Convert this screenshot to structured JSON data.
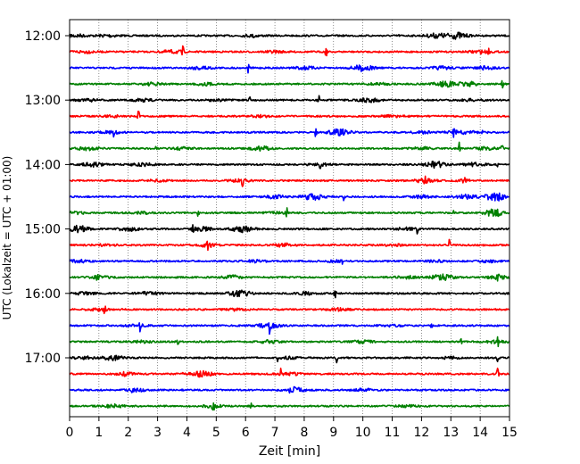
{
  "chart_data": {
    "type": "line",
    "subtype": "helicorder",
    "xlabel": "Zeit  [min]",
    "ylabel": "UTC (Lokalzeit = UTC + 01:00)",
    "xlim": [
      0,
      15
    ],
    "x_ticks": [
      "0",
      "1",
      "2",
      "3",
      "4",
      "5",
      "6",
      "7",
      "8",
      "9",
      "10",
      "11",
      "12",
      "13",
      "14",
      "15"
    ],
    "y_ticks": [
      "12:00",
      "13:00",
      "14:00",
      "15:00",
      "16:00",
      "17:00"
    ],
    "grid": "vertical-dotted",
    "trace_minutes": 15,
    "trace_color_cycle": [
      "#000000",
      "#ff0000",
      "#0000ff",
      "#008000"
    ],
    "traces": [
      {
        "start": "12:00",
        "color": "#000000",
        "bursts": [
          [
            0.2,
            0.5
          ],
          [
            1.3,
            0.4
          ],
          [
            6.2,
            0.3
          ],
          [
            12.5,
            0.7
          ],
          [
            13.2,
            1.0
          ]
        ],
        "spikes": [
          [
            6.3,
            0.5
          ],
          [
            11.2,
            0.3
          ]
        ]
      },
      {
        "start": "12:15",
        "color": "#ff0000",
        "bursts": [
          [
            0.5,
            0.4
          ],
          [
            3.5,
            0.5
          ],
          [
            7.0,
            0.3
          ],
          [
            14.0,
            0.5
          ]
        ],
        "spikes": [
          [
            3.85,
            1.8
          ],
          [
            8.75,
            1.2
          ],
          [
            14.3,
            0.6
          ]
        ]
      },
      {
        "start": "12:30",
        "color": "#0000ff",
        "bursts": [
          [
            4.5,
            0.6
          ],
          [
            8.0,
            0.5
          ],
          [
            10.0,
            1.0
          ],
          [
            12.7,
            0.5
          ],
          [
            14.2,
            0.5
          ]
        ],
        "spikes": [
          [
            6.1,
            1.2
          ]
        ]
      },
      {
        "start": "12:45",
        "color": "#008000",
        "bursts": [
          [
            2.8,
            0.4
          ],
          [
            4.6,
            0.4
          ],
          [
            10.5,
            0.4
          ],
          [
            12.8,
            0.9
          ],
          [
            13.6,
            0.7
          ]
        ],
        "spikes": [
          [
            2.95,
            1.3
          ],
          [
            4.45,
            0.7
          ],
          [
            14.75,
            1.0
          ]
        ]
      },
      {
        "start": "13:00",
        "color": "#000000",
        "bursts": [
          [
            0.6,
            0.4
          ],
          [
            2.5,
            0.4
          ],
          [
            5.0,
            0.3
          ],
          [
            10.2,
            0.6
          ],
          [
            13.7,
            0.3
          ]
        ],
        "spikes": [
          [
            6.15,
            0.6
          ],
          [
            8.5,
            1.1
          ]
        ]
      },
      {
        "start": "13:15",
        "color": "#ff0000",
        "bursts": [
          [
            1.5,
            0.3
          ],
          [
            6.5,
            0.3
          ],
          [
            11.0,
            0.3
          ]
        ],
        "spikes": [
          [
            2.35,
            1.5
          ]
        ]
      },
      {
        "start": "13:30",
        "color": "#0000ff",
        "bursts": [
          [
            1.4,
            0.4
          ],
          [
            9.2,
            1.0
          ],
          [
            12.0,
            0.4
          ],
          [
            13.2,
            0.6
          ],
          [
            14.0,
            0.4
          ]
        ],
        "spikes": [
          [
            1.5,
            1.0
          ],
          [
            8.4,
            1.3
          ],
          [
            13.1,
            0.8
          ]
        ]
      },
      {
        "start": "13:45",
        "color": "#008000",
        "bursts": [
          [
            0.6,
            0.5
          ],
          [
            3.9,
            0.4
          ],
          [
            6.5,
            0.7
          ],
          [
            12.0,
            0.4
          ],
          [
            14.2,
            0.4
          ]
        ],
        "spikes": [
          [
            2.95,
            0.7
          ],
          [
            3.9,
            1.0
          ],
          [
            13.3,
            1.4
          ],
          [
            14.75,
            0.8
          ]
        ]
      },
      {
        "start": "14:00",
        "color": "#000000",
        "bursts": [
          [
            0.8,
            0.7
          ],
          [
            2.5,
            0.5
          ],
          [
            8.5,
            0.4
          ],
          [
            12.5,
            1.0
          ],
          [
            13.8,
            0.5
          ]
        ],
        "spikes": [
          [
            8.55,
            1.2
          ],
          [
            14.6,
            0.5
          ]
        ]
      },
      {
        "start": "14:15",
        "color": "#ff0000",
        "bursts": [
          [
            3.0,
            0.3
          ],
          [
            5.8,
            0.4
          ],
          [
            12.1,
            0.6
          ],
          [
            13.5,
            0.3
          ]
        ],
        "spikes": [
          [
            5.9,
            1.0
          ],
          [
            12.1,
            1.0
          ],
          [
            13.45,
            0.8
          ]
        ]
      },
      {
        "start": "14:30",
        "color": "#0000ff",
        "bursts": [
          [
            7.0,
            0.5
          ],
          [
            8.3,
            1.0
          ],
          [
            12.0,
            0.4
          ],
          [
            13.5,
            0.6
          ],
          [
            14.5,
            1.2
          ]
        ],
        "spikes": [
          [
            9.35,
            0.7
          ],
          [
            14.65,
            0.8
          ]
        ]
      },
      {
        "start": "14:45",
        "color": "#008000",
        "bursts": [
          [
            0.3,
            0.4
          ],
          [
            2.5,
            0.3
          ],
          [
            7.0,
            0.4
          ],
          [
            14.5,
            1.2
          ]
        ],
        "spikes": [
          [
            4.4,
            1.4
          ],
          [
            7.4,
            1.0
          ],
          [
            13.1,
            0.4
          ]
        ]
      },
      {
        "start": "15:00",
        "color": "#000000",
        "bursts": [
          [
            0.3,
            1.0
          ],
          [
            2.0,
            0.6
          ],
          [
            4.5,
            0.6
          ],
          [
            5.9,
            1.0
          ],
          [
            11.5,
            0.4
          ]
        ],
        "spikes": [
          [
            4.2,
            0.6
          ],
          [
            11.85,
            0.8
          ],
          [
            12.7,
            0.5
          ]
        ]
      },
      {
        "start": "15:15",
        "color": "#ff0000",
        "bursts": [
          [
            1.2,
            0.3
          ],
          [
            4.7,
            0.6
          ],
          [
            7.3,
            0.5
          ],
          [
            11.0,
            0.3
          ]
        ],
        "spikes": [
          [
            4.7,
            0.9
          ],
          [
            12.95,
            1.2
          ]
        ]
      },
      {
        "start": "15:30",
        "color": "#0000ff",
        "bursts": [
          [
            0.3,
            0.4
          ],
          [
            6.3,
            0.4
          ],
          [
            9.0,
            0.3
          ],
          [
            12.5,
            0.3
          ],
          [
            14.3,
            0.3
          ]
        ],
        "spikes": [
          [
            9.3,
            0.6
          ],
          [
            14.1,
            0.4
          ]
        ]
      },
      {
        "start": "15:45",
        "color": "#008000",
        "bursts": [
          [
            1.0,
            0.4
          ],
          [
            5.5,
            0.6
          ],
          [
            11.5,
            0.4
          ],
          [
            12.7,
            0.9
          ],
          [
            14.6,
            0.5
          ]
        ],
        "spikes": [
          [
            0.95,
            1.4
          ],
          [
            14.6,
            1.0
          ]
        ]
      },
      {
        "start": "16:00",
        "color": "#000000",
        "bursts": [
          [
            0.5,
            0.4
          ],
          [
            2.7,
            0.5
          ],
          [
            5.8,
            1.0
          ],
          [
            8.0,
            0.4
          ]
        ],
        "spikes": [
          [
            9.05,
            1.0
          ],
          [
            14.8,
            0.5
          ]
        ]
      },
      {
        "start": "16:15",
        "color": "#ff0000",
        "bursts": [
          [
            1.0,
            0.3
          ],
          [
            5.7,
            0.4
          ],
          [
            9.2,
            0.4
          ]
        ],
        "spikes": [
          [
            1.2,
            1.4
          ]
        ]
      },
      {
        "start": "16:30",
        "color": "#0000ff",
        "bursts": [
          [
            2.3,
            0.4
          ],
          [
            6.8,
            0.9
          ],
          [
            11.0,
            0.3
          ]
        ],
        "spikes": [
          [
            2.4,
            1.0
          ],
          [
            6.8,
            1.4
          ],
          [
            12.35,
            0.8
          ]
        ]
      },
      {
        "start": "16:45",
        "color": "#008000",
        "bursts": [
          [
            2.5,
            0.3
          ],
          [
            6.8,
            0.4
          ],
          [
            10.0,
            0.4
          ],
          [
            14.5,
            0.4
          ]
        ],
        "spikes": [
          [
            3.7,
            0.6
          ],
          [
            13.35,
            0.5
          ],
          [
            14.6,
            0.9
          ]
        ]
      },
      {
        "start": "17:00",
        "color": "#000000",
        "bursts": [
          [
            0.5,
            0.4
          ],
          [
            1.5,
            0.7
          ],
          [
            7.5,
            0.3
          ],
          [
            13.0,
            0.3
          ]
        ],
        "spikes": [
          [
            7.1,
            1.0
          ],
          [
            9.1,
            1.3
          ],
          [
            14.6,
            0.8
          ]
        ]
      },
      {
        "start": "17:15",
        "color": "#ff0000",
        "bursts": [
          [
            1.9,
            0.4
          ],
          [
            4.5,
            0.9
          ],
          [
            7.5,
            0.4
          ]
        ],
        "spikes": [
          [
            1.85,
            1.0
          ],
          [
            3.9,
            1.1
          ],
          [
            7.2,
            1.2
          ],
          [
            14.6,
            1.2
          ]
        ]
      },
      {
        "start": "17:30",
        "color": "#0000ff",
        "bursts": [
          [
            2.3,
            0.4
          ],
          [
            7.6,
            1.0
          ],
          [
            10.0,
            0.4
          ]
        ],
        "spikes": [
          [
            2.1,
            0.4
          ]
        ]
      },
      {
        "start": "17:45",
        "color": "#008000",
        "bursts": [
          [
            1.5,
            0.5
          ],
          [
            4.9,
            0.4
          ],
          [
            11.5,
            0.3
          ]
        ],
        "spikes": [
          [
            4.9,
            1.0
          ],
          [
            6.2,
            0.6
          ]
        ]
      }
    ]
  }
}
